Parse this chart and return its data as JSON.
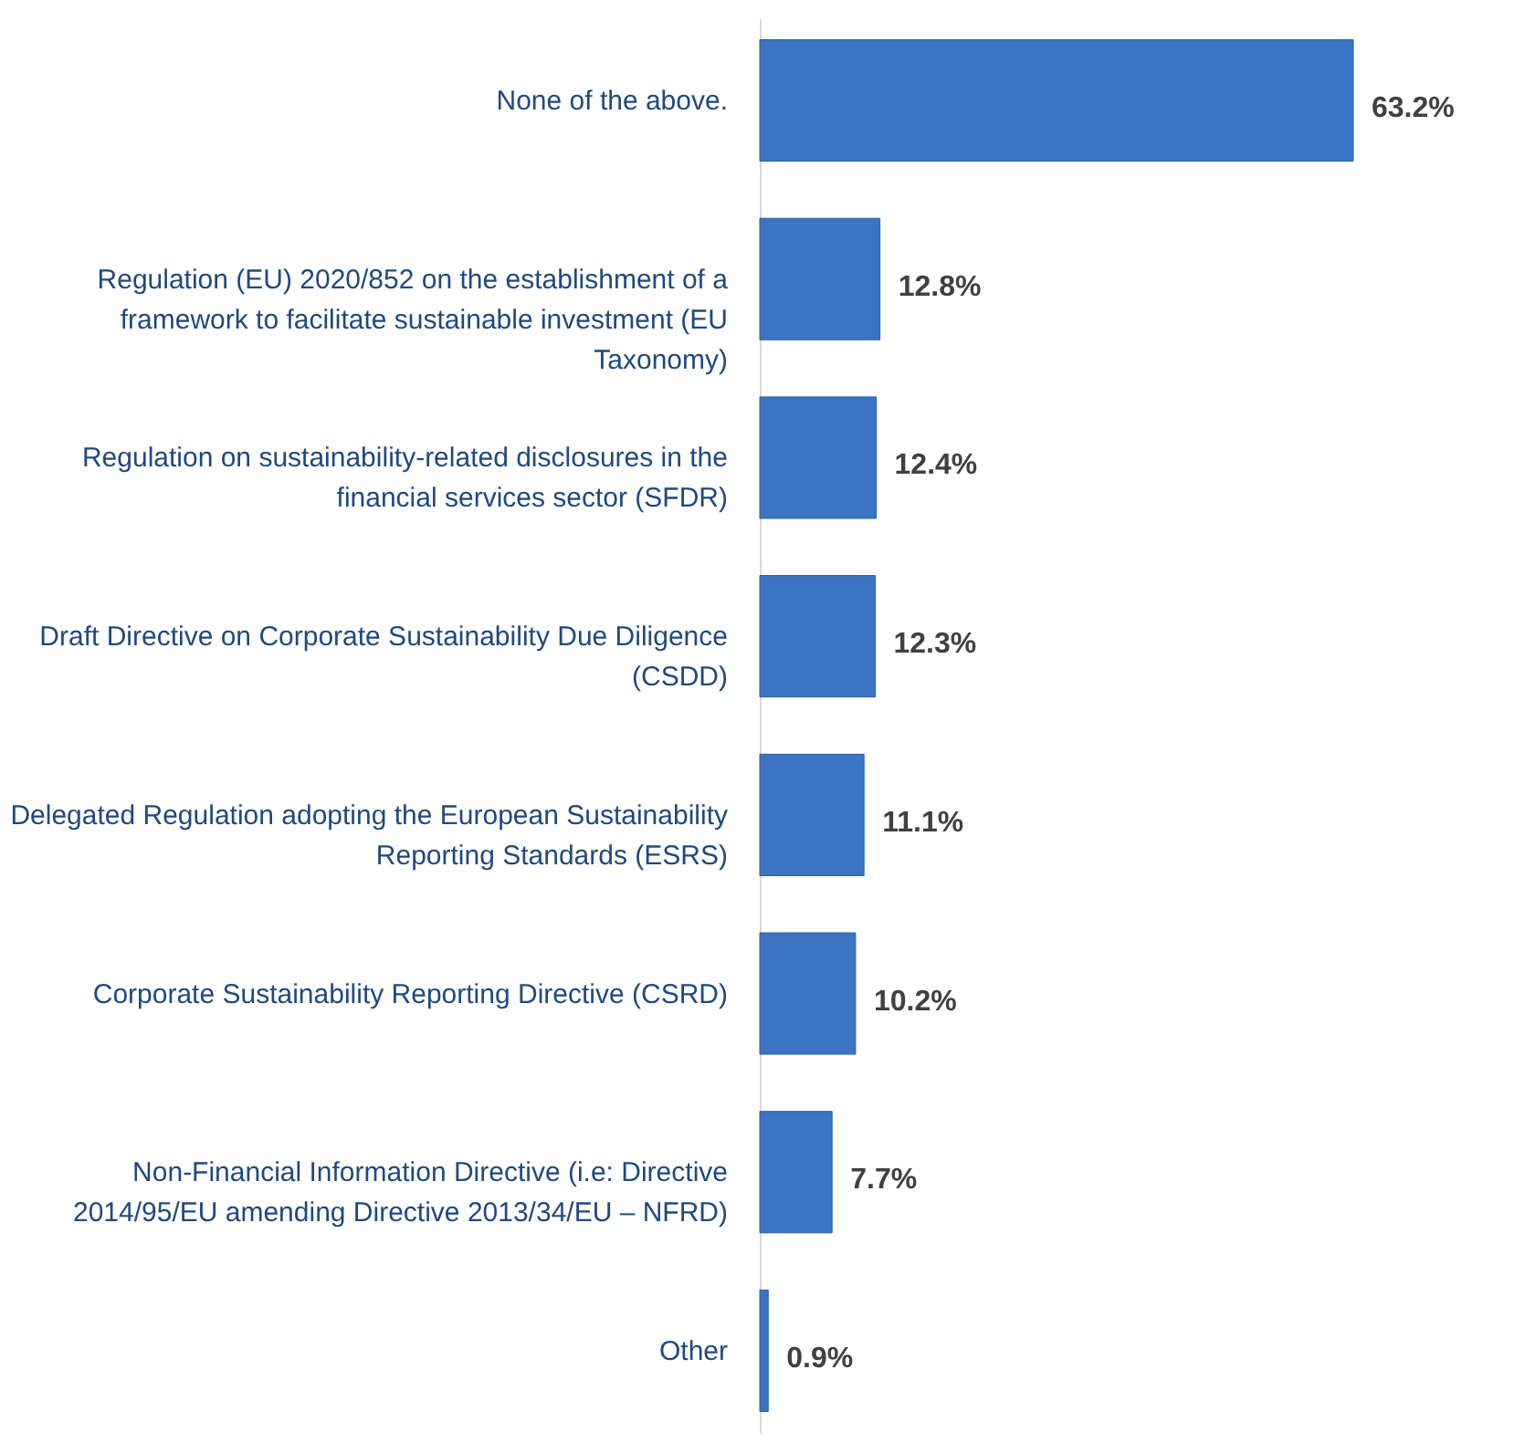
{
  "chart_data": {
    "type": "bar",
    "orientation": "horizontal",
    "data_labels": true,
    "categories": [
      "None of the above.",
      "Regulation (EU) 2020/852 on the establishment of a framework to facilitate sustainable investment (EU Taxonomy)",
      "Regulation on sustainability-related disclosures in the financial services sector (SFDR)",
      "Draft Directive on Corporate Sustainability Due Diligence (CSDD)",
      "Delegated Regulation adopting the European Sustainability Reporting Standards (ESRS)",
      "Corporate Sustainability Reporting Directive (CSRD)",
      "Non-Financial Information Directive (i.e: Directive 2014/95/EU amending Directive 2013/34/EU – NFRD)",
      "Other"
    ],
    "series": [
      {
        "color": "#3a74c2",
        "values": [
          63.2,
          12.8,
          12.4,
          12.3,
          11.1,
          10.2,
          7.7,
          0.9
        ],
        "value_labels": [
          "63.2%",
          "12.8%",
          "12.4%",
          "12.3%",
          "11.1%",
          "10.2%",
          "7.7%",
          "0.9%"
        ]
      }
    ]
  }
}
